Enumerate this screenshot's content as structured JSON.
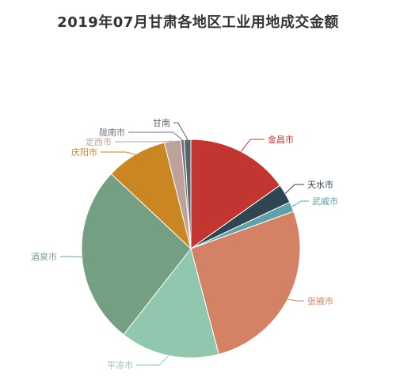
{
  "chart_data": {
    "type": "pie",
    "title": "2019年07月甘肃各地区工业用地成交金额",
    "slices": [
      {
        "label": "金昌市",
        "value": 15.5,
        "color": "#c23531"
      },
      {
        "label": "天水市",
        "value": 2.9,
        "color": "#2f4554"
      },
      {
        "label": "武威市",
        "value": 1.5,
        "color": "#61a0a8"
      },
      {
        "label": "张掖市",
        "value": 27.0,
        "color": "#d48265"
      },
      {
        "label": "平凉市",
        "value": 15.0,
        "color": "#91c7ae"
      },
      {
        "label": "酒泉市",
        "value": 27.0,
        "color": "#749f83"
      },
      {
        "label": "庆阳市",
        "value": 9.3,
        "color": "#ca8622"
      },
      {
        "label": "定西市",
        "value": 2.5,
        "color": "#bda29a"
      },
      {
        "label": "陇南市",
        "value": 0.5,
        "color": "#6e7074"
      },
      {
        "label": "甘南",
        "value": 1.0,
        "color": "#546570"
      }
    ]
  }
}
